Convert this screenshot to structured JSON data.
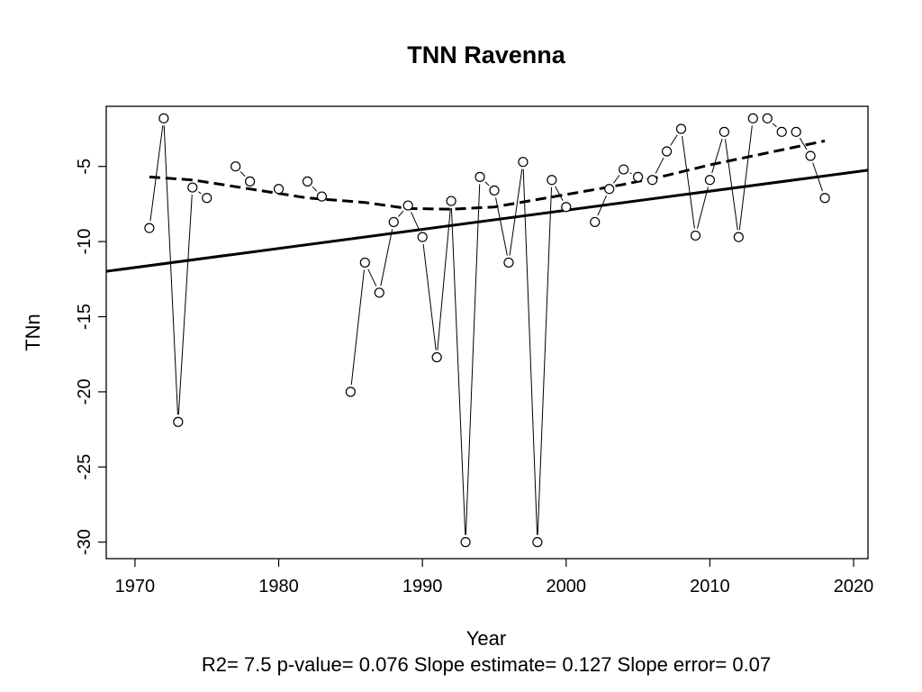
{
  "chart_data": {
    "type": "line",
    "title": "TNN   Ravenna",
    "xlabel": "Year",
    "ylabel": "TNn",
    "footer": "R2= 7.5  p-value= 0.076  Slope estimate= 0.127  Slope error= 0.07",
    "xlim": [
      1968,
      2021
    ],
    "ylim": [
      -31.1,
      -1.0
    ],
    "xticks": [
      1970,
      1980,
      1990,
      2000,
      2010,
      2020
    ],
    "yticks": [
      -5,
      -10,
      -15,
      -20,
      -25,
      -30
    ],
    "grid": false,
    "legend": "none",
    "series": [
      {
        "x": [
          1971,
          1972,
          1973,
          1974,
          1975,
          1977,
          1978,
          1980,
          1982,
          1983,
          1985,
          1986,
          1987,
          1988,
          1989,
          1990,
          1991,
          1992,
          1993,
          1994,
          1995,
          1996,
          1997,
          1998,
          1999,
          2000,
          2002,
          2003,
          2004,
          2005,
          2006,
          2007,
          2008,
          2009,
          2010,
          2011,
          2012,
          2013,
          2014,
          2015,
          2016,
          2017,
          2018
        ],
        "values": [
          -9.1,
          -1.8,
          -22.0,
          -6.4,
          -7.1,
          -5.0,
          -6.0,
          -6.5,
          -6.0,
          -7.0,
          -20.0,
          -11.4,
          -13.4,
          -8.7,
          -7.6,
          -9.7,
          -17.7,
          -7.3,
          -30.0,
          -5.7,
          -6.6,
          -11.4,
          -4.7,
          -30.0,
          -5.9,
          -7.7,
          -8.7,
          -6.5,
          -5.2,
          -5.7,
          -5.9,
          -4.0,
          -2.5,
          -9.6,
          -5.9,
          -2.7,
          -9.7,
          -1.8,
          -1.8,
          -2.7,
          -2.7,
          -4.3,
          -7.1
        ]
      }
    ],
    "trend_line": {
      "x": [
        1968,
        2021
      ],
      "values": [
        -11.98,
        -5.25
      ]
    },
    "smooth_curve": {
      "x": [
        1971,
        1974,
        1978,
        1982,
        1986,
        1989,
        1992,
        1995,
        1998,
        2001,
        2004,
        2007,
        2010,
        2013,
        2016,
        2018
      ],
      "values": [
        -5.7,
        -5.9,
        -6.5,
        -7.1,
        -7.4,
        -7.8,
        -7.85,
        -7.7,
        -7.2,
        -6.7,
        -6.2,
        -5.6,
        -4.9,
        -4.3,
        -3.7,
        -3.3
      ]
    }
  }
}
